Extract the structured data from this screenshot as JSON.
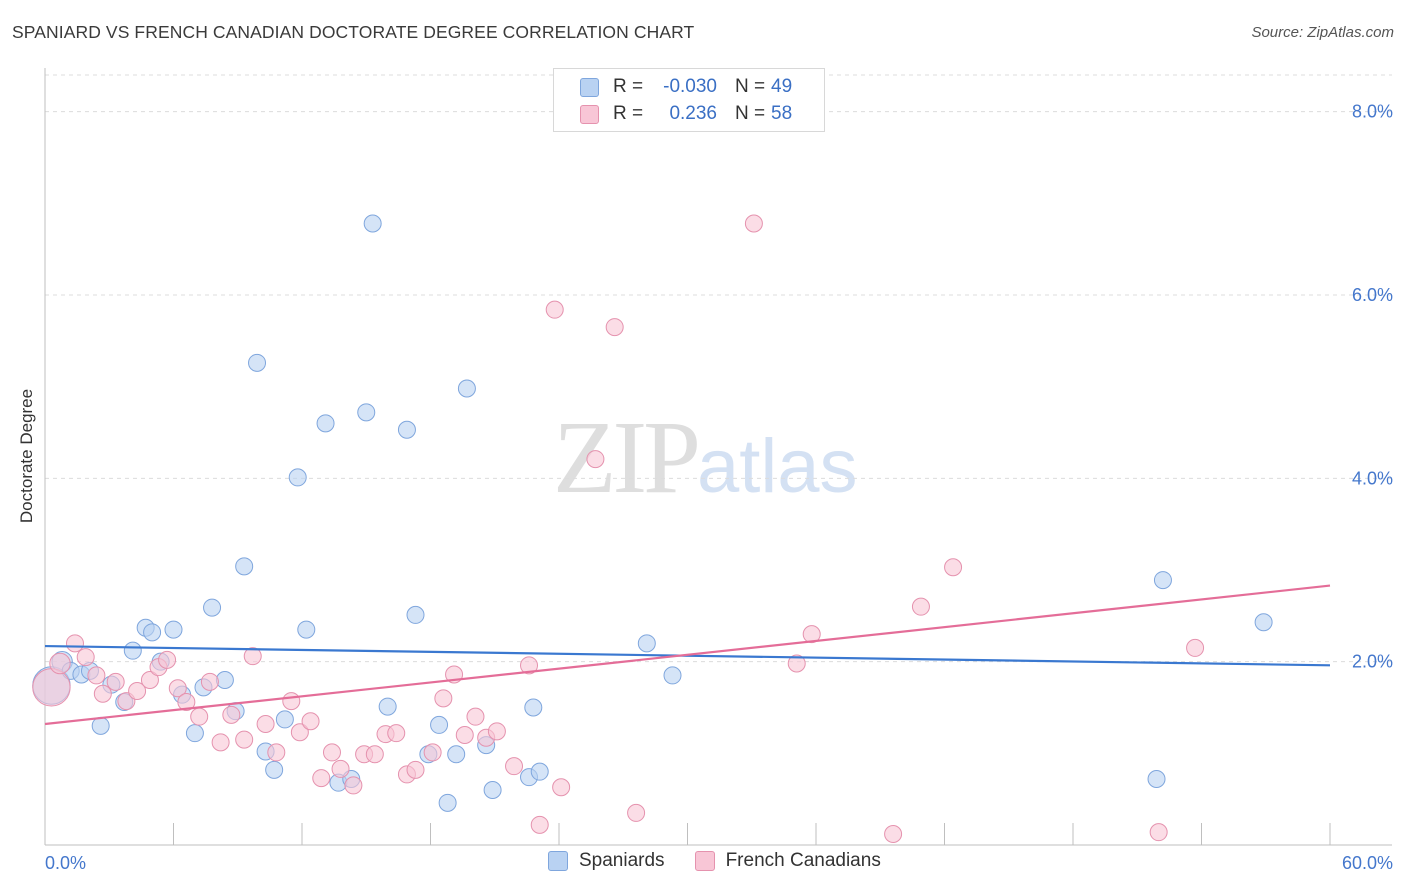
{
  "header": {
    "title": "SPANIARD VS FRENCH CANADIAN DOCTORATE DEGREE CORRELATION CHART",
    "source": "Source: ZipAtlas.com"
  },
  "watermark": {
    "zip": "ZIP",
    "atlas": "atlas"
  },
  "legend_top": {
    "rows": [
      {
        "r_label": "R =",
        "r_value": "-0.030",
        "n_label": "N =",
        "n_value": "49",
        "color": "#b9d2f2",
        "border": "#7fa6dd"
      },
      {
        "r_label": "R =",
        "r_value": "0.236",
        "n_label": "N =",
        "n_value": "58",
        "color": "#f8c6d6",
        "border": "#e592ae"
      }
    ]
  },
  "legend_bottom": {
    "items": [
      {
        "label": "Spaniards",
        "color": "#b9d2f2",
        "border": "#7fa6dd"
      },
      {
        "label": "French Canadians",
        "color": "#f8c6d6",
        "border": "#e592ae"
      }
    ]
  },
  "chart_data": {
    "type": "scatter",
    "title": "SPANIARD VS FRENCH CANADIAN DOCTORATE DEGREE CORRELATION CHART",
    "ylabel": "Doctorate Degree",
    "xlabel": "",
    "xlim": [
      0,
      60
    ],
    "ylim": [
      0,
      8.4
    ],
    "x_tick_labels": [
      "0.0%",
      "60.0%"
    ],
    "y_ticks": [
      2,
      4,
      6,
      8
    ],
    "y_tick_labels": [
      "2.0%",
      "4.0%",
      "6.0%",
      "8.0%"
    ],
    "grid": "horizontal dashed",
    "colors": {
      "blue": "#3a78d0",
      "pink": "#e46d98",
      "tick_text": "#4477cc"
    },
    "series": [
      {
        "name": "Spaniards",
        "color": "#b9d2f2",
        "edge": "#7fa6dd",
        "trend": {
          "x": [
            0,
            60
          ],
          "y": [
            2.17,
            1.96
          ]
        },
        "points": [
          [
            0.3,
            1.74,
            2.2
          ],
          [
            0.8,
            2.0,
            1.2
          ],
          [
            1.2,
            1.9,
            1
          ],
          [
            1.7,
            1.86,
            1
          ],
          [
            2.1,
            1.9,
            1
          ],
          [
            2.6,
            1.3,
            1
          ],
          [
            3.1,
            1.75,
            1
          ],
          [
            3.7,
            1.56,
            1
          ],
          [
            4.1,
            2.12,
            1
          ],
          [
            4.7,
            2.37,
            1
          ],
          [
            5.0,
            2.32,
            1
          ],
          [
            5.4,
            2.0,
            1
          ],
          [
            6.0,
            2.35,
            1
          ],
          [
            6.4,
            1.64,
            1
          ],
          [
            7.0,
            1.22,
            1
          ],
          [
            7.4,
            1.72,
            1
          ],
          [
            7.8,
            2.59,
            1
          ],
          [
            8.4,
            1.8,
            1
          ],
          [
            8.9,
            1.46,
            1
          ],
          [
            9.3,
            3.04,
            1
          ],
          [
            9.9,
            5.26,
            1
          ],
          [
            10.3,
            1.02,
            1
          ],
          [
            10.7,
            0.82,
            1
          ],
          [
            11.2,
            1.37,
            1
          ],
          [
            11.8,
            4.01,
            1
          ],
          [
            12.2,
            2.35,
            1
          ],
          [
            13.1,
            4.6,
            1
          ],
          [
            13.7,
            0.68,
            1
          ],
          [
            14.3,
            0.72,
            1
          ],
          [
            15.0,
            4.72,
            1
          ],
          [
            15.3,
            6.78,
            1
          ],
          [
            16.0,
            1.51,
            1
          ],
          [
            16.9,
            4.53,
            1
          ],
          [
            17.3,
            2.51,
            1
          ],
          [
            17.9,
            0.99,
            1
          ],
          [
            18.4,
            1.31,
            1
          ],
          [
            18.8,
            0.46,
            1
          ],
          [
            19.2,
            0.99,
            1
          ],
          [
            19.7,
            4.98,
            1
          ],
          [
            20.6,
            1.09,
            1
          ],
          [
            20.9,
            0.6,
            1
          ],
          [
            22.6,
            0.74,
            1
          ],
          [
            22.8,
            1.5,
            1
          ],
          [
            23.1,
            0.8,
            1
          ],
          [
            28.1,
            2.2,
            1
          ],
          [
            29.3,
            1.85,
            1
          ],
          [
            51.9,
            0.72,
            1
          ],
          [
            52.2,
            2.89,
            1
          ],
          [
            56.9,
            2.43,
            1
          ]
        ]
      },
      {
        "name": "French Canadians",
        "color": "#f8c6d6",
        "edge": "#e592ae",
        "trend": {
          "x": [
            0,
            60
          ],
          "y": [
            1.32,
            2.83
          ]
        },
        "points": [
          [
            0.3,
            1.72,
            2.2
          ],
          [
            0.7,
            1.98,
            1.2
          ],
          [
            1.4,
            2.2,
            1
          ],
          [
            1.9,
            2.05,
            1
          ],
          [
            2.4,
            1.85,
            1
          ],
          [
            2.7,
            1.65,
            1
          ],
          [
            3.3,
            1.78,
            1
          ],
          [
            3.8,
            1.57,
            1
          ],
          [
            4.3,
            1.68,
            1
          ],
          [
            4.9,
            1.8,
            1
          ],
          [
            5.3,
            1.94,
            1
          ],
          [
            5.7,
            2.02,
            1
          ],
          [
            6.2,
            1.71,
            1
          ],
          [
            6.6,
            1.56,
            1
          ],
          [
            7.2,
            1.4,
            1
          ],
          [
            7.7,
            1.78,
            1
          ],
          [
            8.2,
            1.12,
            1
          ],
          [
            8.7,
            1.42,
            1
          ],
          [
            9.3,
            1.15,
            1
          ],
          [
            9.7,
            2.06,
            1
          ],
          [
            10.3,
            1.32,
            1
          ],
          [
            10.8,
            1.01,
            1
          ],
          [
            11.5,
            1.57,
            1
          ],
          [
            11.9,
            1.23,
            1
          ],
          [
            12.4,
            1.35,
            1
          ],
          [
            12.9,
            0.73,
            1
          ],
          [
            13.4,
            1.01,
            1
          ],
          [
            13.8,
            0.83,
            1
          ],
          [
            14.4,
            0.65,
            1
          ],
          [
            14.9,
            0.99,
            1
          ],
          [
            15.4,
            0.99,
            1
          ],
          [
            15.9,
            1.21,
            1
          ],
          [
            16.4,
            1.22,
            1
          ],
          [
            16.9,
            0.77,
            1
          ],
          [
            17.3,
            0.82,
            1
          ],
          [
            18.1,
            1.01,
            1
          ],
          [
            18.6,
            1.6,
            1
          ],
          [
            19.1,
            1.86,
            1
          ],
          [
            19.6,
            1.2,
            1
          ],
          [
            20.1,
            1.4,
            1
          ],
          [
            20.6,
            1.17,
            1
          ],
          [
            21.1,
            1.24,
            1
          ],
          [
            21.9,
            0.86,
            1
          ],
          [
            22.6,
            1.96,
            1
          ],
          [
            23.1,
            0.22,
            1
          ],
          [
            23.8,
            5.84,
            1
          ],
          [
            24.1,
            0.63,
            1
          ],
          [
            25.7,
            4.21,
            1
          ],
          [
            26.6,
            5.65,
            1
          ],
          [
            27.6,
            0.35,
            1
          ],
          [
            33.1,
            6.78,
            1
          ],
          [
            35.1,
            1.98,
            1
          ],
          [
            35.8,
            2.3,
            1
          ],
          [
            39.6,
            0.12,
            1
          ],
          [
            40.9,
            2.6,
            1
          ],
          [
            42.4,
            3.03,
            1
          ],
          [
            52.0,
            0.14,
            1
          ],
          [
            53.7,
            2.15,
            1
          ]
        ]
      }
    ]
  }
}
